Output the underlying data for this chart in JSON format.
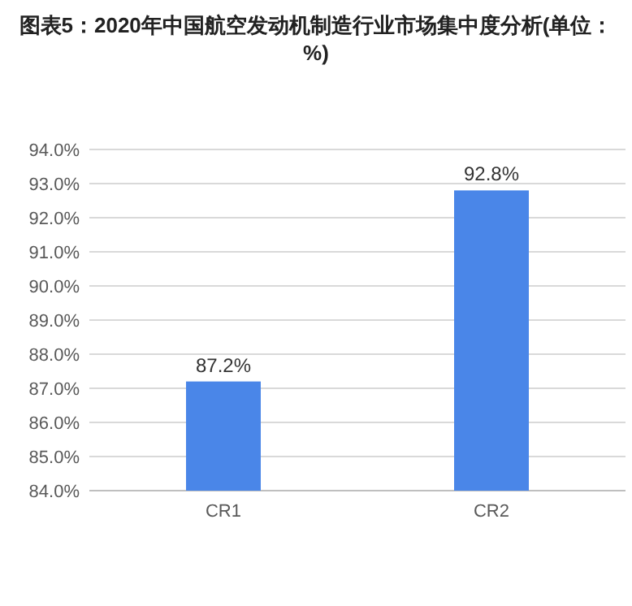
{
  "chart_data": {
    "type": "bar",
    "title": "图表5：2020年中国航空发动机制造行业市场集中度分析(单位：%)",
    "categories": [
      "CR1",
      "CR2"
    ],
    "values": [
      87.2,
      92.8
    ],
    "color": "#4a86e8",
    "value_labels": [
      "87.2%",
      "92.8%"
    ],
    "ylim": [
      84,
      94
    ],
    "yticks": [
      {
        "value": 84,
        "label": "84.0%"
      },
      {
        "value": 85,
        "label": "85.0%"
      },
      {
        "value": 86,
        "label": "86.0%"
      },
      {
        "value": 87,
        "label": "87.0%"
      },
      {
        "value": 88,
        "label": "88.0%"
      },
      {
        "value": 89,
        "label": "89.0%"
      },
      {
        "value": 90,
        "label": "90.0%"
      },
      {
        "value": 91,
        "label": "91.0%"
      },
      {
        "value": 92,
        "label": "92.0%"
      },
      {
        "value": 93,
        "label": "93.0%"
      },
      {
        "value": 94,
        "label": "94.0%"
      }
    ],
    "grid": "y"
  }
}
